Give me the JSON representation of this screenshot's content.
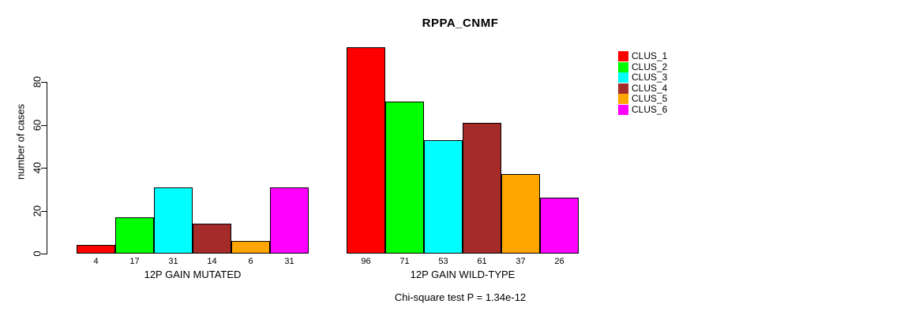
{
  "chart_data": {
    "type": "bar",
    "title": "RPPA_CNMF",
    "ylabel": "number of cases",
    "yticks": [
      0,
      20,
      40,
      60,
      80
    ],
    "ylim": [
      0,
      96
    ],
    "grid": false,
    "legend_position": "right",
    "categories": [
      "CLUS_1",
      "CLUS_2",
      "CLUS_3",
      "CLUS_4",
      "CLUS_5",
      "CLUS_6"
    ],
    "series_colors": [
      "#FF0000",
      "#00FF00",
      "#00FFFF",
      "#A52A2A",
      "#FFA500",
      "#FF00FF"
    ],
    "groups": [
      {
        "label": "12P GAIN MUTATED",
        "values": [
          4,
          17,
          31,
          14,
          6,
          31
        ]
      },
      {
        "label": "12P GAIN WILD-TYPE",
        "values": [
          96,
          71,
          53,
          61,
          37,
          26
        ]
      }
    ],
    "legend": [
      {
        "label": "CLUS_1",
        "color": "#FF0000"
      },
      {
        "label": "CLUS_2",
        "color": "#00FF00"
      },
      {
        "label": "CLUS_3",
        "color": "#00FFFF"
      },
      {
        "label": "CLUS_4",
        "color": "#A52A2A"
      },
      {
        "label": "CLUS_5",
        "color": "#FFA500"
      },
      {
        "label": "CLUS_6",
        "color": "#FF00FF"
      }
    ],
    "footnote": "Chi-square test P = 1.34e-12"
  }
}
